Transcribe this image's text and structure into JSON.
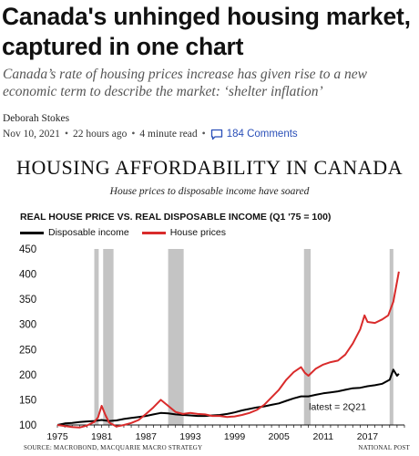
{
  "article": {
    "headline": "Canada's unhinged housing market, captured in one chart",
    "subhead": "Canada’s rate of housing prices increase has given rise to a new economic term to describe the market: ‘shelter inflation’",
    "author": "Deborah Stokes",
    "date": "Nov 10, 2021",
    "age": "22 hours ago",
    "read_time": "4 minute read",
    "comments": "184 Comments",
    "separator": "•"
  },
  "figure": {
    "title": "HOUSING AFFORDABILITY IN CANADA",
    "subtitle": "House prices to disposable income have soared",
    "source": "SOURCE: MACROBOND, MACQUARIE MACRO STRATEGY",
    "credit": "NATIONAL POST"
  },
  "colors": {
    "income": "#000000",
    "prices": "#d92b2b",
    "recession": "#c4c4c4",
    "link": "#2a4fb8"
  },
  "chart_data": {
    "type": "line",
    "title": "REAL HOUSE PRICE VS. REAL DISPOSABLE INCOME (Q1 '75 = 100)",
    "xlim": [
      1975,
      2022
    ],
    "ylim": [
      100,
      450
    ],
    "yticks": [
      100,
      150,
      200,
      250,
      300,
      350,
      400,
      450
    ],
    "xticks": [
      1975,
      1981,
      1987,
      1993,
      1999,
      2005,
      2011,
      2017
    ],
    "grid": false,
    "legend_position": "top-left",
    "recessions": [
      [
        1980.0,
        1980.6
      ],
      [
        1981.2,
        1982.6
      ],
      [
        1990.0,
        1992.1
      ],
      [
        2008.4,
        2009.3
      ],
      [
        2020.0,
        2020.5
      ]
    ],
    "annotation": {
      "text": "latest = 2Q21",
      "x": 2021.25
    },
    "series": [
      {
        "name": "Disposable income",
        "x": [
          1975,
          1976,
          1977,
          1978,
          1979,
          1980,
          1981,
          1982,
          1983,
          1984,
          1985,
          1986,
          1987,
          1988,
          1989,
          1990,
          1991,
          1992,
          1993,
          1994,
          1995,
          1996,
          1997,
          1998,
          1999,
          2000,
          2001,
          2002,
          2003,
          2004,
          2005,
          2006,
          2007,
          2008,
          2009,
          2010,
          2011,
          2012,
          2013,
          2014,
          2015,
          2016,
          2017,
          2018,
          2019,
          2020,
          2020.5,
          2021,
          2021.25
        ],
        "values": [
          100,
          103,
          104,
          106,
          107,
          108,
          110,
          108,
          109,
          112,
          114,
          116,
          118,
          121,
          124,
          123,
          121,
          120,
          119,
          118,
          118,
          119,
          120,
          122,
          125,
          129,
          132,
          135,
          137,
          140,
          143,
          148,
          153,
          157,
          157,
          160,
          163,
          165,
          167,
          170,
          173,
          174,
          177,
          179,
          182,
          190,
          210,
          198,
          202
        ]
      },
      {
        "name": "House prices",
        "x": [
          1975,
          1976,
          1977,
          1978,
          1979,
          1980,
          1980.5,
          1981,
          1981.5,
          1982,
          1983,
          1984,
          1985,
          1986,
          1987,
          1988,
          1989,
          1990,
          1991,
          1992,
          1993,
          1994,
          1995,
          1996,
          1997,
          1998,
          1999,
          2000,
          2001,
          2002,
          2003,
          2004,
          2005,
          2006,
          2007,
          2008,
          2008.5,
          2009,
          2010,
          2011,
          2012,
          2013,
          2014,
          2015,
          2016,
          2016.6,
          2017,
          2018,
          2019,
          2019.8,
          2020.5,
          2021,
          2021.25
        ],
        "values": [
          100,
          98,
          96,
          95,
          99,
          106,
          115,
          138,
          120,
          105,
          97,
          100,
          104,
          110,
          122,
          135,
          150,
          138,
          126,
          122,
          124,
          122,
          121,
          118,
          118,
          116,
          117,
          120,
          124,
          130,
          140,
          155,
          170,
          190,
          205,
          215,
          204,
          198,
          212,
          220,
          225,
          228,
          240,
          262,
          290,
          318,
          305,
          303,
          310,
          318,
          345,
          385,
          405
        ]
      }
    ]
  }
}
